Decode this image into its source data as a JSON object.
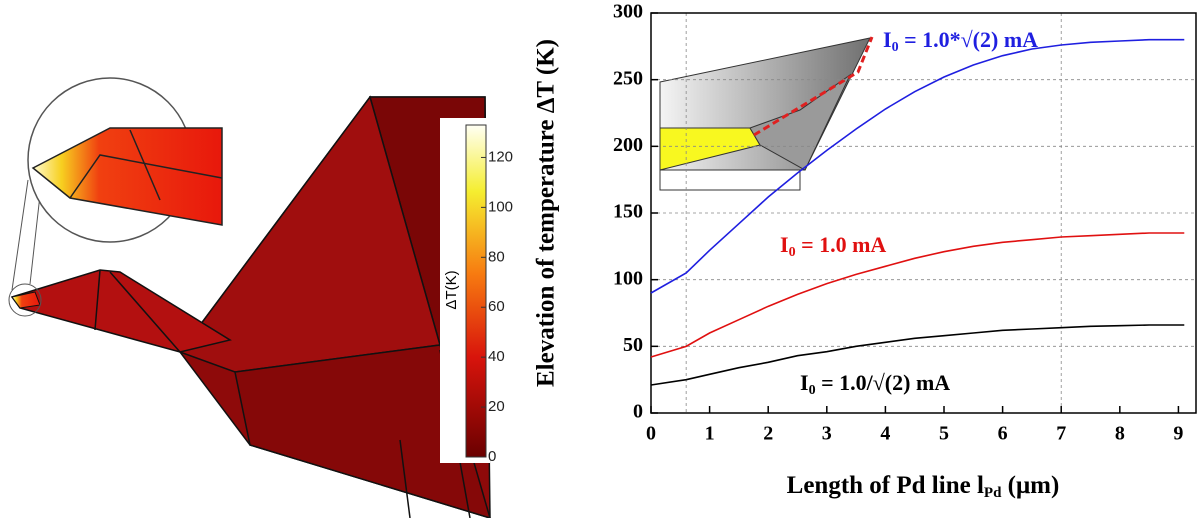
{
  "chart_data": [
    {
      "type": "colorbar",
      "label": "ΔT(K)",
      "lim": [
        0,
        133
      ],
      "ticks": [
        0,
        20,
        40,
        60,
        80,
        100,
        120
      ]
    },
    {
      "type": "line",
      "ylabel": "Elevation of temperature ΔT (K)",
      "xlabel_parts": [
        "Length of Pd line l",
        "Pd",
        " (μm)"
      ],
      "x": [
        0,
        0.6,
        1,
        1.5,
        2,
        2.5,
        3,
        3.5,
        4,
        4.5,
        5,
        5.5,
        6,
        6.5,
        7,
        7.5,
        8,
        8.5,
        9,
        9.1
      ],
      "series": [
        {
          "label_parts": [
            "I",
            "0",
            " = 1.0*√(2) mA"
          ],
          "color": "#1f1fe0",
          "values": [
            90,
            105,
            122,
            142,
            162,
            180,
            197,
            213,
            228,
            241,
            252,
            261,
            268,
            273,
            276,
            278,
            279,
            280,
            280,
            280
          ]
        },
        {
          "label_parts": [
            "I",
            "0",
            " = 1.0 mA"
          ],
          "color": "#e01010",
          "values": [
            42,
            50,
            60,
            70,
            80,
            89,
            97,
            104,
            110,
            116,
            121,
            125,
            128,
            130,
            132,
            133,
            134,
            135,
            135,
            135
          ]
        },
        {
          "label_parts": [
            "I",
            "0",
            " = 1.0/√(2) mA"
          ],
          "color": "#000000",
          "values": [
            21,
            25,
            29,
            34,
            38,
            43,
            46,
            50,
            53,
            56,
            58,
            60,
            62,
            63,
            64,
            65,
            65.5,
            66,
            66,
            66
          ]
        }
      ],
      "xlim": [
        0,
        9.3
      ],
      "ylim": [
        0,
        300
      ],
      "xticks": [
        0,
        1,
        2,
        3,
        4,
        5,
        6,
        7,
        8,
        9
      ],
      "yticks": [
        0,
        50,
        100,
        150,
        200,
        250,
        300
      ],
      "vlines": [
        0.6,
        7
      ],
      "grid": true
    }
  ]
}
